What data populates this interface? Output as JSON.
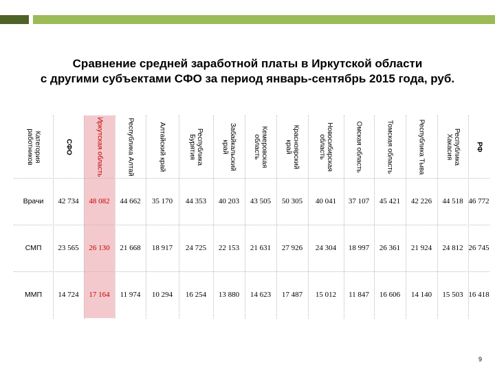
{
  "title": {
    "line1": "Сравнение средней заработной платы в Иркутской области",
    "line2": "с другими субъектами СФО за период январь-сентябрь 2015 года, руб."
  },
  "table": {
    "headers": [
      "Категория работников",
      "СФО",
      "Иркутская область",
      "Республика Алтай",
      "Алтайский край",
      "Республика Бурятия",
      "Забайкальский край",
      "Кемеровская область",
      "Красноярский край",
      "Новосибирская область",
      "Омская область",
      "Томская область",
      "Республика Тыва",
      "Республика Хакасия",
      "РФ"
    ],
    "rows": [
      [
        "Врачи",
        "42 734",
        "48 082",
        "44 662",
        "35 170",
        "44 353",
        "40 203",
        "43 505",
        "50 305",
        "40 041",
        "37 107",
        "45 421",
        "42 226",
        "44 518",
        "46 772"
      ],
      [
        "СМП",
        "23 565",
        "26 130",
        "21 668",
        "18 917",
        "24 725",
        "22 153",
        "21 631",
        "27 926",
        "24 304",
        "18 997",
        "26 361",
        "21 924",
        "24 812",
        "26 745"
      ],
      [
        "ММП",
        "14 724",
        "17 164",
        "11 974",
        "10 294",
        "16 254",
        "13 880",
        "14 623",
        "17 487",
        "15 012",
        "11 847",
        "16 606",
        "14 140",
        "15 503",
        "16 418"
      ]
    ],
    "highlight_column": 2,
    "highlight_color": "#f4c9cd",
    "highlight_text_color": "#c00000"
  },
  "accent": {
    "dark_green": "#4f6228",
    "light_green": "#9bbb59"
  },
  "page_number": "9"
}
